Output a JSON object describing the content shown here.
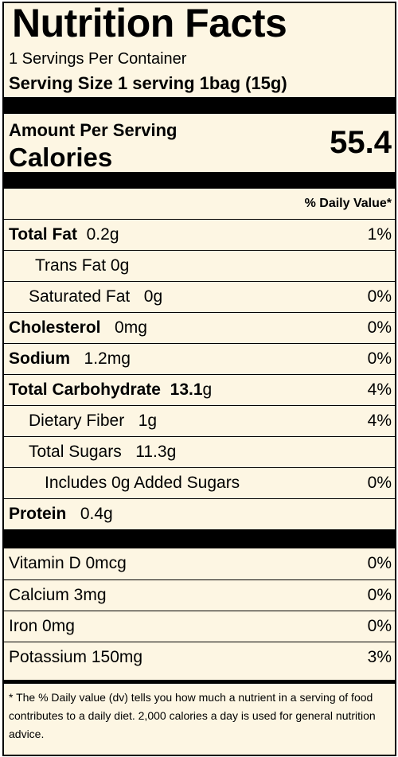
{
  "title": "Nutrition Facts",
  "servings_per_container": "1 Servings Per Container",
  "serving_size": "Serving Size  1 serving 1bag (15g)",
  "amount_per_serving": "Amount Per Serving",
  "calories_label": "Calories",
  "calories_value": "55.4",
  "daily_value_header": "% Daily Value*",
  "nutrients": [
    {
      "label": "Total Fat",
      "amount": "0.2g",
      "dv": "1%"
    },
    {
      "label": "Trans Fat",
      "amount": "0g",
      "dv": ""
    },
    {
      "label": "Saturated Fat",
      "amount": "0g",
      "dv": "0%"
    },
    {
      "label": "Cholesterol",
      "amount": "0mg",
      "dv": "0%"
    },
    {
      "label": "Sodium",
      "amount": "1.2mg",
      "dv": "0%"
    },
    {
      "label": "Total Carbohydrate",
      "amount_bold": "13.1",
      "amount_unit": "g",
      "dv": "4%"
    },
    {
      "label": "Dietary Fiber",
      "amount": "1g",
      "dv": "4%"
    },
    {
      "label": "Total Sugars",
      "amount": "11.3g",
      "dv": ""
    },
    {
      "label": "Includes 0g Added Sugars",
      "dv": "0%"
    },
    {
      "label": "Protein",
      "amount": "0.4g",
      "dv": ""
    }
  ],
  "vitamins": [
    {
      "label": "Vitamin D 0mcg",
      "dv": "0%"
    },
    {
      "label": "Calcium 3mg",
      "dv": "0%"
    },
    {
      "label": "Iron 0mg",
      "dv": "0%"
    },
    {
      "label": "Potassium 150mg",
      "dv": "3%"
    }
  ],
  "footnote": "* The % Daily value (dv) tells you how much a nutrient in a serving of food contributes to a daily diet. 2,000 calories a day is used for general nutrition advice."
}
